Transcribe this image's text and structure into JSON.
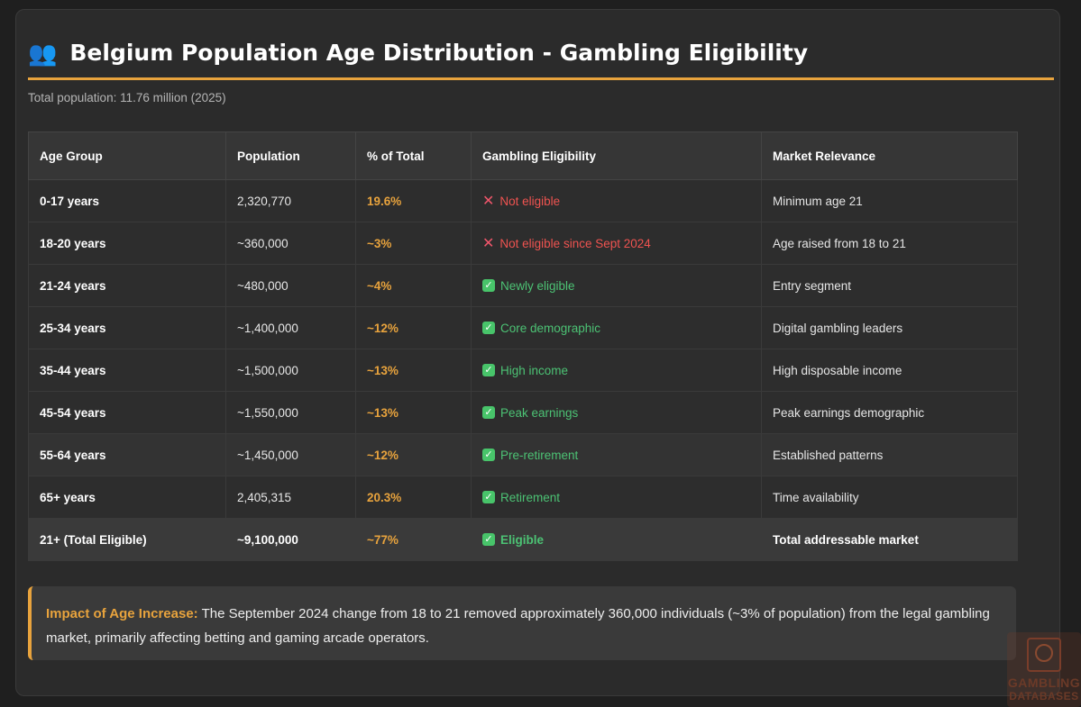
{
  "header": {
    "icon": "people-icon",
    "title": "Belgium Population Age Distribution - Gambling Eligibility"
  },
  "subtitle": "Total population: 11.76 million (2025)",
  "table": {
    "columns": [
      "Age Group",
      "Population",
      "% of Total",
      "Gambling Eligibility",
      "Market Relevance"
    ],
    "rows": [
      {
        "age": "0-17 years",
        "population": "2,320,770",
        "pct": "19.6%",
        "eligibility": "Not eligible",
        "eligible": false,
        "relevance": "Minimum age 21"
      },
      {
        "age": "18-20 years",
        "population": "~360,000",
        "pct": "~3%",
        "eligibility": "Not eligible since Sept 2024",
        "eligible": false,
        "relevance": "Age raised from 18 to 21"
      },
      {
        "age": "21-24 years",
        "population": "~480,000",
        "pct": "~4%",
        "eligibility": "Newly eligible",
        "eligible": true,
        "relevance": "Entry segment"
      },
      {
        "age": "25-34 years",
        "population": "~1,400,000",
        "pct": "~12%",
        "eligibility": "Core demographic",
        "eligible": true,
        "relevance": "Digital gambling leaders"
      },
      {
        "age": "35-44 years",
        "population": "~1,500,000",
        "pct": "~13%",
        "eligibility": "High income",
        "eligible": true,
        "relevance": "High disposable income"
      },
      {
        "age": "45-54 years",
        "population": "~1,550,000",
        "pct": "~13%",
        "eligibility": "Peak earnings",
        "eligible": true,
        "relevance": "Peak earnings demographic"
      },
      {
        "age": "55-64 years",
        "population": "~1,450,000",
        "pct": "~12%",
        "eligibility": "Pre-retirement",
        "eligible": true,
        "relevance": "Established patterns"
      },
      {
        "age": "65+ years",
        "population": "2,405,315",
        "pct": "20.3%",
        "eligibility": "Retirement",
        "eligible": true,
        "relevance": "Time availability"
      },
      {
        "age": "21+ (Total Eligible)",
        "population": "~9,100,000",
        "pct": "~77%",
        "eligibility": "Eligible",
        "eligible": true,
        "relevance": "Total addressable market"
      }
    ]
  },
  "note": {
    "label": "Impact of Age Increase:",
    "text": " The September 2024 change from 18 to 21 removed approximately 360,000 individuals (~3% of population) from the legal gambling market, primarily affecting betting and gaming arcade operators."
  },
  "watermark": {
    "line1": "GAMBLING",
    "line2": "DATABASES"
  },
  "colors": {
    "accent": "#e8a33d",
    "not_eligible": "#ef5350",
    "eligible": "#4cc274"
  }
}
